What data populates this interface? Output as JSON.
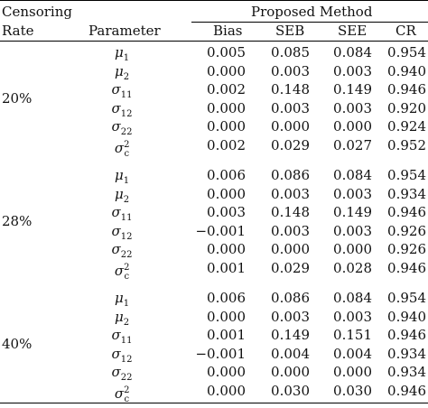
{
  "header": {
    "censoring_line1": "Censoring",
    "censoring_line2": "Rate",
    "parameter": "Parameter",
    "group": "Proposed Method",
    "columns": [
      "Bias",
      "SEB",
      "SEE",
      "CR"
    ]
  },
  "groups": [
    {
      "rate": "20%",
      "rows": [
        {
          "sym": "μ",
          "sub": "1",
          "sup": "",
          "bias": "0.005",
          "seb": "0.085",
          "see": "0.084",
          "cr": "0.954"
        },
        {
          "sym": "μ",
          "sub": "2",
          "sup": "",
          "bias": "0.000",
          "seb": "0.003",
          "see": "0.003",
          "cr": "0.940"
        },
        {
          "sym": "σ",
          "sub": "11",
          "sup": "",
          "bias": "0.002",
          "seb": "0.148",
          "see": "0.149",
          "cr": "0.946"
        },
        {
          "sym": "σ",
          "sub": "12",
          "sup": "",
          "bias": "0.000",
          "seb": "0.003",
          "see": "0.003",
          "cr": "0.920"
        },
        {
          "sym": "σ",
          "sub": "22",
          "sup": "",
          "bias": "0.000",
          "seb": "0.000",
          "see": "0.000",
          "cr": "0.924"
        },
        {
          "sym": "σ",
          "sub": "c",
          "sup": "2",
          "bias": "0.002",
          "seb": "0.029",
          "see": "0.027",
          "cr": "0.952"
        }
      ]
    },
    {
      "rate": "28%",
      "rows": [
        {
          "sym": "μ",
          "sub": "1",
          "sup": "",
          "bias": "0.006",
          "seb": "0.086",
          "see": "0.084",
          "cr": "0.954"
        },
        {
          "sym": "μ",
          "sub": "2",
          "sup": "",
          "bias": "0.000",
          "seb": "0.003",
          "see": "0.003",
          "cr": "0.934"
        },
        {
          "sym": "σ",
          "sub": "11",
          "sup": "",
          "bias": "0.003",
          "seb": "0.148",
          "see": "0.149",
          "cr": "0.946"
        },
        {
          "sym": "σ",
          "sub": "12",
          "sup": "",
          "bias": "−0.001",
          "seb": "0.003",
          "see": "0.003",
          "cr": "0.926"
        },
        {
          "sym": "σ",
          "sub": "22",
          "sup": "",
          "bias": "0.000",
          "seb": "0.000",
          "see": "0.000",
          "cr": "0.926"
        },
        {
          "sym": "σ",
          "sub": "c",
          "sup": "2",
          "bias": "0.001",
          "seb": "0.029",
          "see": "0.028",
          "cr": "0.946"
        }
      ]
    },
    {
      "rate": "40%",
      "rows": [
        {
          "sym": "μ",
          "sub": "1",
          "sup": "",
          "bias": "0.006",
          "seb": "0.086",
          "see": "0.084",
          "cr": "0.954"
        },
        {
          "sym": "μ",
          "sub": "2",
          "sup": "",
          "bias": "0.000",
          "seb": "0.003",
          "see": "0.003",
          "cr": "0.940"
        },
        {
          "sym": "σ",
          "sub": "11",
          "sup": "",
          "bias": "0.001",
          "seb": "0.149",
          "see": "0.151",
          "cr": "0.946"
        },
        {
          "sym": "σ",
          "sub": "12",
          "sup": "",
          "bias": "−0.001",
          "seb": "0.004",
          "see": "0.004",
          "cr": "0.934"
        },
        {
          "sym": "σ",
          "sub": "22",
          "sup": "",
          "bias": "0.000",
          "seb": "0.000",
          "see": "0.000",
          "cr": "0.934"
        },
        {
          "sym": "σ",
          "sub": "c",
          "sup": "2",
          "bias": "0.000",
          "seb": "0.030",
          "see": "0.030",
          "cr": "0.946"
        }
      ]
    }
  ]
}
